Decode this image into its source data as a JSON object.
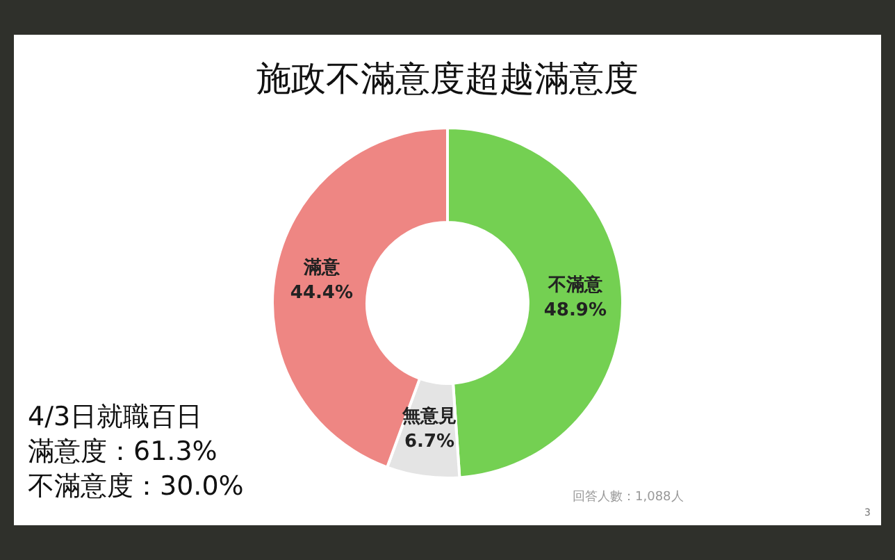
{
  "chart_data": {
    "type": "donut",
    "title": "施政不滿意度超越滿意度",
    "categories": [
      "不滿意",
      "無意見",
      "滿意"
    ],
    "values": [
      48.9,
      6.7,
      44.4
    ],
    "value_labels": [
      "48.9%",
      "6.7%",
      "44.4%"
    ],
    "colors": [
      "#74d052",
      "#e4e4e4",
      "#ee8683"
    ],
    "legend": false,
    "annotations": [
      "4/3日就職百日",
      "滿意度：61.3%",
      "不滿意度：30.0%",
      "回答人數：1,088人",
      "3"
    ]
  }
}
